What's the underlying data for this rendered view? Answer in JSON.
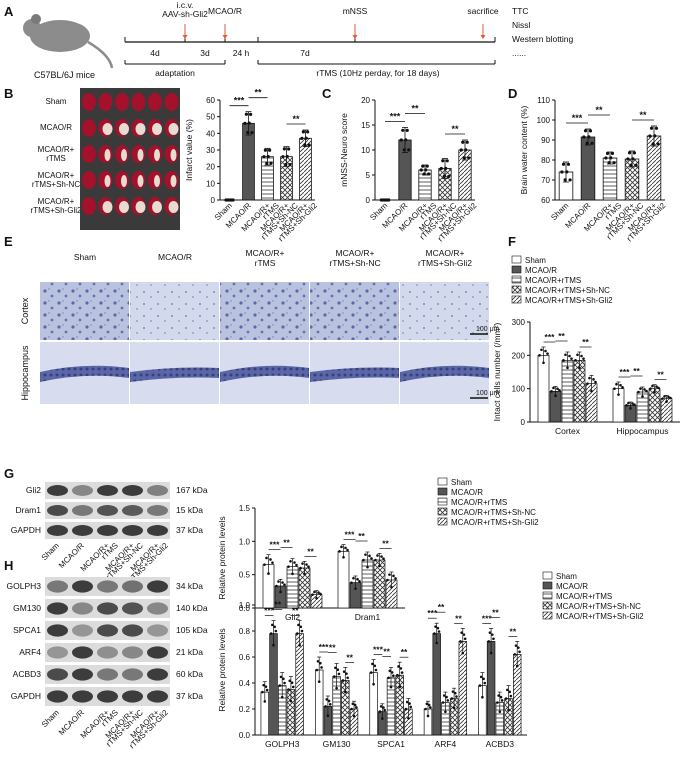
{
  "panel_labels": [
    "A",
    "B",
    "C",
    "D",
    "E",
    "F",
    "G",
    "H"
  ],
  "timeline": {
    "mouse_label": "C57BL/6J mice",
    "events": [
      "i.c.v.\nAAV-sh-Gli2",
      "MCAO/R",
      "mNSS",
      "sacrifice"
    ],
    "segments": [
      "4d",
      "3d",
      "24 h",
      "7d"
    ],
    "phase_labels": [
      "adaptation",
      "rTMS (10Hz perday, for 18 days)"
    ],
    "assays": [
      "TTC",
      "Nissl",
      "Western blotting",
      "......"
    ]
  },
  "groups_b": [
    "Sham",
    "MCAO/R",
    "MCAO/R+\nrTMS",
    "MCAO/R+\nrTMS+Sh-NC",
    "MCAO/R+\nrTMS+Sh-Gli2"
  ],
  "x_groups": [
    "Sham",
    "MCAO/R",
    "MCAO/R+\nrTMS",
    "MCAO/R+\nrTMS+Sh-NC",
    "MCAO/R+\nrTMS+Sh-Gli2"
  ],
  "e_headers": [
    "Sham",
    "MCAO/R",
    "MCAO/R+\nrTMS",
    "MCAO/R+\nrTMS+Sh-NC",
    "MCAO/R+\nrTMS+Sh-Gli2"
  ],
  "e_rows": [
    "Cortex",
    "Hippocampus"
  ],
  "scale_bar": "100 μm",
  "legend": [
    "Sham",
    "MCAO/R",
    "MCAO/R+rTMS",
    "MCAO/R+rTMS+Sh-NC",
    "MCAO/R+rTMS+Sh-Gli2"
  ],
  "g_blot": {
    "bands": [
      {
        "name": "Gli2",
        "kda": "167 kDa"
      },
      {
        "name": "Dram1",
        "kda": "15 kDa"
      },
      {
        "name": "GAPDH",
        "kda": "37 kDa"
      }
    ],
    "lanes": [
      "Sham",
      "MCAO/R",
      "MCAO/R+\nrTMS",
      "MCAO/R+\nrTMS+Sh-NC",
      "MCAO/R+\nrTMS+Sh-Gli2"
    ]
  },
  "h_blot": {
    "bands": [
      {
        "name": "GOLPH3",
        "kda": "34 kDa"
      },
      {
        "name": "GM130",
        "kda": "140 kDa"
      },
      {
        "name": "SPCA1",
        "kda": "105 kDa"
      },
      {
        "name": "ARF4",
        "kda": "21 kDa"
      },
      {
        "name": "ACBD3",
        "kda": "60 kDa"
      },
      {
        "name": "GAPDH",
        "kda": "37 kDa"
      }
    ],
    "lanes": [
      "Sham",
      "MCAO/R",
      "MCAO/R+\nrTMS",
      "MCAO/R+\nrTMS+Sh-NC",
      "MCAO/R+\nrTMS+Sh-Gli2"
    ]
  },
  "chart_data": [
    {
      "id": "B",
      "type": "bar",
      "ylabel": "Infarct value (%)",
      "ylim": [
        0,
        60
      ],
      "yticks": [
        0,
        10,
        20,
        30,
        40,
        50,
        60
      ],
      "categories": [
        "Sham",
        "MCAO/R",
        "MCAO/R+\nrTMS",
        "MCAO/R+\nrTMS+Sh-NC",
        "MCAO/R+\nrTMS+Sh-Gli2"
      ],
      "values": [
        0,
        46,
        26,
        26,
        37
      ],
      "errors": [
        0,
        7,
        5,
        6,
        5
      ],
      "sig": [
        {
          "a": 0,
          "b": 1,
          "t": "***"
        },
        {
          "a": 1,
          "b": 2,
          "t": "**"
        },
        {
          "a": 3,
          "b": 4,
          "t": "**"
        }
      ]
    },
    {
      "id": "C",
      "type": "bar",
      "ylabel": "mNSS-Neuro score",
      "ylim": [
        0,
        20
      ],
      "yticks": [
        0,
        5,
        10,
        15,
        20
      ],
      "categories": [
        "Sham",
        "MCAO/R",
        "MCAO/R+\nrTMS",
        "MCAO/R+\nrTMS+Sh-NC",
        "MCAO/R+\nrTMS+Sh-Gli2"
      ],
      "values": [
        0,
        12,
        6,
        6.3,
        10
      ],
      "errors": [
        0,
        2.5,
        1,
        2,
        2
      ],
      "sig": [
        {
          "a": 0,
          "b": 1,
          "t": "***"
        },
        {
          "a": 1,
          "b": 2,
          "t": "**"
        },
        {
          "a": 3,
          "b": 4,
          "t": "**"
        }
      ]
    },
    {
      "id": "D",
      "type": "bar",
      "ylabel": "Brain water content (%)",
      "ylim": [
        60,
        110
      ],
      "yticks": [
        60,
        70,
        80,
        90,
        100,
        110
      ],
      "categories": [
        "Sham",
        "MCAO/R",
        "MCAO/R+\nrTMS",
        "MCAO/R+\nrTMS+Sh-NC",
        "MCAO/R+\nrTMS+Sh-Gli2"
      ],
      "values": [
        74,
        91.5,
        81,
        80.5,
        92
      ],
      "errors": [
        5,
        4,
        3,
        4,
        5
      ],
      "sig": [
        {
          "a": 0,
          "b": 1,
          "t": "***"
        },
        {
          "a": 1,
          "b": 2,
          "t": "**"
        },
        {
          "a": 3,
          "b": 4,
          "t": "**"
        }
      ]
    },
    {
      "id": "F",
      "type": "bar",
      "ylabel": "Intact cells number (/mm²)",
      "ylim": [
        0,
        300
      ],
      "yticks": [
        0,
        100,
        200,
        300
      ],
      "categories": [
        "Cortex",
        "Hippocampus"
      ],
      "series": [
        {
          "name": "Sham",
          "values": [
            200,
            100
          ]
        },
        {
          "name": "MCAO/R",
          "values": [
            92,
            50
          ]
        },
        {
          "name": "MCAO/R+rTMS",
          "values": [
            185,
            90
          ]
        },
        {
          "name": "MCAO/R+rTMS+Sh-NC",
          "values": [
            185,
            100
          ]
        },
        {
          "name": "MCAO/R+rTMS+Sh-Gli2",
          "values": [
            115,
            70
          ]
        }
      ],
      "errors": [
        [
          25,
          20
        ],
        [
          15,
          10
        ],
        [
          25,
          15
        ],
        [
          25,
          12
        ],
        [
          25,
          10
        ]
      ],
      "sig": [
        [
          {
            "a": 0,
            "b": 1,
            "t": "***"
          },
          {
            "a": 1,
            "b": 2,
            "t": "**"
          },
          {
            "a": 3,
            "b": 4,
            "t": "**"
          }
        ],
        [
          {
            "a": 0,
            "b": 1,
            "t": "***"
          },
          {
            "a": 1,
            "b": 2,
            "t": "**"
          },
          {
            "a": 3,
            "b": 4,
            "t": "**"
          }
        ]
      ]
    },
    {
      "id": "G",
      "type": "bar",
      "ylabel": "Relative protein levels",
      "ylim": [
        0,
        1.5
      ],
      "yticks": [
        0.0,
        0.5,
        1.0,
        1.5
      ],
      "categories": [
        "Gli2",
        "Dram1"
      ],
      "series": [
        {
          "name": "Sham",
          "values": [
            0.65,
            0.85
          ]
        },
        {
          "name": "MCAO/R",
          "values": [
            0.33,
            0.38
          ]
        },
        {
          "name": "MCAO/R+rTMS",
          "values": [
            0.62,
            0.72
          ]
        },
        {
          "name": "MCAO/R+rTMS+Sh-NC",
          "values": [
            0.6,
            0.72
          ]
        },
        {
          "name": "MCAO/R+rTMS+Sh-Gli2",
          "values": [
            0.2,
            0.42
          ]
        }
      ],
      "errors": [
        [
          0.15,
          0.1
        ],
        [
          0.1,
          0.1
        ],
        [
          0.12,
          0.12
        ],
        [
          0.1,
          0.1
        ],
        [
          0.06,
          0.12
        ]
      ],
      "sig": [
        [
          {
            "a": 0,
            "b": 1,
            "t": "***"
          },
          {
            "a": 1,
            "b": 2,
            "t": "**"
          },
          {
            "a": 3,
            "b": 4,
            "t": "**"
          }
        ],
        [
          {
            "a": 0,
            "b": 1,
            "t": "***"
          },
          {
            "a": 1,
            "b": 2,
            "t": "**"
          },
          {
            "a": 3,
            "b": 4,
            "t": "**"
          }
        ]
      ]
    },
    {
      "id": "H",
      "type": "bar",
      "ylabel": "Relative protein levels",
      "ylim": [
        0,
        1.0
      ],
      "yticks": [
        0.0,
        0.2,
        0.4,
        0.6,
        0.8,
        1.0
      ],
      "categories": [
        "GOLPH3",
        "GM130",
        "SPCA1",
        "ARF4",
        "ACBD3"
      ],
      "series": [
        {
          "name": "Sham",
          "values": [
            0.33,
            0.5,
            0.48,
            0.2,
            0.38
          ]
        },
        {
          "name": "MCAO/R",
          "values": [
            0.78,
            0.22,
            0.18,
            0.78,
            0.72
          ]
        },
        {
          "name": "MCAO/R+rTMS",
          "values": [
            0.38,
            0.45,
            0.44,
            0.25,
            0.25
          ]
        },
        {
          "name": "MCAO/R+rTMS+Sh-NC",
          "values": [
            0.35,
            0.42,
            0.46,
            0.28,
            0.28
          ]
        },
        {
          "name": "MCAO/R+rTMS+Sh-Gli2",
          "values": [
            0.78,
            0.2,
            0.2,
            0.72,
            0.62
          ]
        }
      ],
      "errors": [
        [
          0.08,
          0.1,
          0.1,
          0.06,
          0.1
        ],
        [
          0.1,
          0.08,
          0.06,
          0.08,
          0.1
        ],
        [
          0.1,
          0.1,
          0.08,
          0.08,
          0.08
        ],
        [
          0.1,
          0.1,
          0.1,
          0.08,
          0.1
        ],
        [
          0.1,
          0.06,
          0.08,
          0.1,
          0.1
        ]
      ],
      "sig": [
        [
          {
            "a": 0,
            "b": 1,
            "t": "***"
          },
          {
            "a": 1,
            "b": 2,
            "t": "**"
          },
          {
            "a": 3,
            "b": 4,
            "t": "**"
          }
        ],
        [
          {
            "a": 0,
            "b": 1,
            "t": "***"
          },
          {
            "a": 1,
            "b": 2,
            "t": "**"
          },
          {
            "a": 3,
            "b": 4,
            "t": "**"
          }
        ],
        [
          {
            "a": 0,
            "b": 1,
            "t": "***"
          },
          {
            "a": 1,
            "b": 2,
            "t": "**"
          },
          {
            "a": 3,
            "b": 4,
            "t": "**"
          }
        ],
        [
          {
            "a": 0,
            "b": 1,
            "t": "***"
          },
          {
            "a": 1,
            "b": 2,
            "t": "**"
          },
          {
            "a": 3,
            "b": 4,
            "t": "**"
          }
        ],
        [
          {
            "a": 0,
            "b": 1,
            "t": "***"
          },
          {
            "a": 1,
            "b": 2,
            "t": "**"
          },
          {
            "a": 3,
            "b": 4,
            "t": "**"
          }
        ]
      ]
    }
  ]
}
